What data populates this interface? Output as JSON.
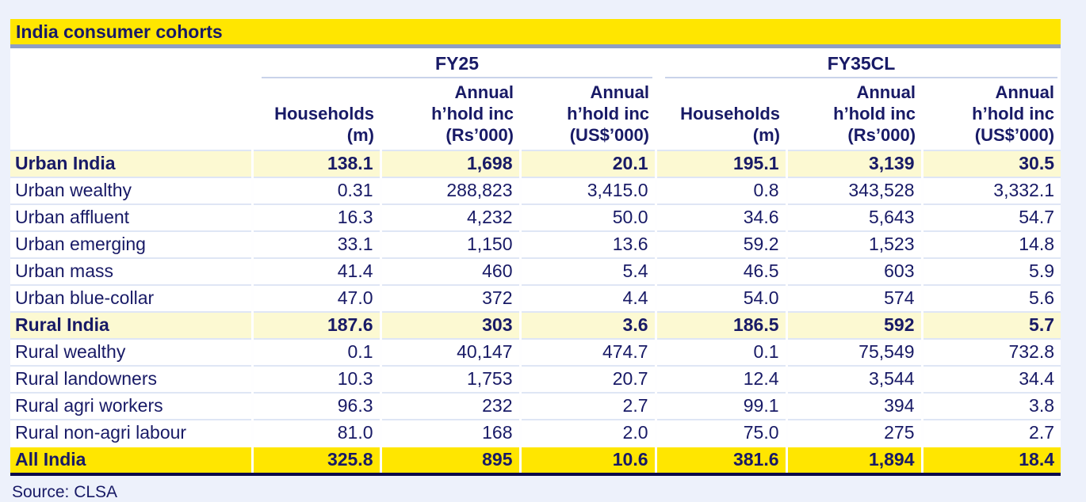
{
  "title": "India consumer cohorts",
  "source_note": "Source: CLSA",
  "table": {
    "group_headers": [
      {
        "label": "FY25"
      },
      {
        "label": "FY35CL"
      }
    ],
    "column_headers": [
      "Households\n(m)",
      "Annual\nh’hold inc\n(Rs’000)",
      "Annual\nh’hold inc\n(US$’000)",
      "Households\n(m)",
      "Annual\nh’hold inc\n(Rs’000)",
      "Annual\nh’hold inc\n(US$’000)"
    ],
    "rows": [
      {
        "label": "Urban India",
        "style": "section",
        "values": [
          "138.1",
          "1,698",
          "20.1",
          "195.1",
          "3,139",
          "30.5"
        ]
      },
      {
        "label": "Urban wealthy",
        "style": "normal",
        "values": [
          "0.31",
          "288,823",
          "3,415.0",
          "0.8",
          "343,528",
          "3,332.1"
        ]
      },
      {
        "label": "Urban affluent",
        "style": "normal",
        "values": [
          "16.3",
          "4,232",
          "50.0",
          "34.6",
          "5,643",
          "54.7"
        ]
      },
      {
        "label": "Urban emerging",
        "style": "normal",
        "values": [
          "33.1",
          "1,150",
          "13.6",
          "59.2",
          "1,523",
          "14.8"
        ]
      },
      {
        "label": "Urban mass",
        "style": "normal",
        "values": [
          "41.4",
          "460",
          "5.4",
          "46.5",
          "603",
          "5.9"
        ]
      },
      {
        "label": "Urban blue-collar",
        "style": "normal",
        "values": [
          "47.0",
          "372",
          "4.4",
          "54.0",
          "574",
          "5.6"
        ]
      },
      {
        "label": "Rural India",
        "style": "section",
        "values": [
          "187.6",
          "303",
          "3.6",
          "186.5",
          "592",
          "5.7"
        ]
      },
      {
        "label": "Rural wealthy",
        "style": "normal",
        "values": [
          "0.1",
          "40,147",
          "474.7",
          "0.1",
          "75,549",
          "732.8"
        ]
      },
      {
        "label": "Rural landowners",
        "style": "normal",
        "values": [
          "10.3",
          "1,753",
          "20.7",
          "12.4",
          "3,544",
          "34.4"
        ]
      },
      {
        "label": "Rural agri workers",
        "style": "normal",
        "values": [
          "96.3",
          "232",
          "2.7",
          "99.1",
          "394",
          "3.8"
        ]
      },
      {
        "label": "Rural non-agri labour",
        "style": "normal",
        "values": [
          "81.0",
          "168",
          "2.0",
          "75.0",
          "275",
          "2.7"
        ]
      },
      {
        "label": "All India",
        "style": "total",
        "values": [
          "325.8",
          "895",
          "10.6",
          "381.6",
          "1,894",
          "18.4"
        ]
      }
    ]
  },
  "colors": {
    "accent_yellow": "#ffe600",
    "section_yellow": "#fcf9d2",
    "navy_text": "#181a66",
    "title_rule_blue_gray": "#8e9ec4",
    "row_separator": "#dfe6f5",
    "bottom_border_navy": "#0b0b4a",
    "page_background": "#edf1fb"
  },
  "chart_data": {
    "type": "table",
    "title": "India consumer cohorts",
    "column_groups": [
      "FY25",
      "FY25",
      "FY25",
      "FY35CL",
      "FY35CL",
      "FY35CL"
    ],
    "columns": [
      "Households (m)",
      "Annual h’hold inc (Rs’000)",
      "Annual h’hold inc (US$’000)",
      "Households (m)",
      "Annual h’hold inc (Rs’000)",
      "Annual h’hold inc (US$’000)"
    ],
    "rows": [
      {
        "cohort": "Urban India",
        "fy25_households_m": 138.1,
        "fy25_inc_rs000": 1698,
        "fy25_inc_usd000": 20.1,
        "fy35cl_households_m": 195.1,
        "fy35cl_inc_rs000": 3139,
        "fy35cl_inc_usd000": 30.5
      },
      {
        "cohort": "Urban wealthy",
        "fy25_households_m": 0.31,
        "fy25_inc_rs000": 288823,
        "fy25_inc_usd000": 3415.0,
        "fy35cl_households_m": 0.8,
        "fy35cl_inc_rs000": 343528,
        "fy35cl_inc_usd000": 3332.1
      },
      {
        "cohort": "Urban affluent",
        "fy25_households_m": 16.3,
        "fy25_inc_rs000": 4232,
        "fy25_inc_usd000": 50.0,
        "fy35cl_households_m": 34.6,
        "fy35cl_inc_rs000": 5643,
        "fy35cl_inc_usd000": 54.7
      },
      {
        "cohort": "Urban emerging",
        "fy25_households_m": 33.1,
        "fy25_inc_rs000": 1150,
        "fy25_inc_usd000": 13.6,
        "fy35cl_households_m": 59.2,
        "fy35cl_inc_rs000": 1523,
        "fy35cl_inc_usd000": 14.8
      },
      {
        "cohort": "Urban mass",
        "fy25_households_m": 41.4,
        "fy25_inc_rs000": 460,
        "fy25_inc_usd000": 5.4,
        "fy35cl_households_m": 46.5,
        "fy35cl_inc_rs000": 603,
        "fy35cl_inc_usd000": 5.9
      },
      {
        "cohort": "Urban blue-collar",
        "fy25_households_m": 47.0,
        "fy25_inc_rs000": 372,
        "fy25_inc_usd000": 4.4,
        "fy35cl_households_m": 54.0,
        "fy35cl_inc_rs000": 574,
        "fy35cl_inc_usd000": 5.6
      },
      {
        "cohort": "Rural India",
        "fy25_households_m": 187.6,
        "fy25_inc_rs000": 303,
        "fy25_inc_usd000": 3.6,
        "fy35cl_households_m": 186.5,
        "fy35cl_inc_rs000": 592,
        "fy35cl_inc_usd000": 5.7
      },
      {
        "cohort": "Rural wealthy",
        "fy25_households_m": 0.1,
        "fy25_inc_rs000": 40147,
        "fy25_inc_usd000": 474.7,
        "fy35cl_households_m": 0.1,
        "fy35cl_inc_rs000": 75549,
        "fy35cl_inc_usd000": 732.8
      },
      {
        "cohort": "Rural landowners",
        "fy25_households_m": 10.3,
        "fy25_inc_rs000": 1753,
        "fy25_inc_usd000": 20.7,
        "fy35cl_households_m": 12.4,
        "fy35cl_inc_rs000": 3544,
        "fy35cl_inc_usd000": 34.4
      },
      {
        "cohort": "Rural agri workers",
        "fy25_households_m": 96.3,
        "fy25_inc_rs000": 232,
        "fy25_inc_usd000": 2.7,
        "fy35cl_households_m": 99.1,
        "fy35cl_inc_rs000": 394,
        "fy35cl_inc_usd000": 3.8
      },
      {
        "cohort": "Rural non-agri labour",
        "fy25_households_m": 81.0,
        "fy25_inc_rs000": 168,
        "fy25_inc_usd000": 2.0,
        "fy35cl_households_m": 75.0,
        "fy35cl_inc_rs000": 275,
        "fy35cl_inc_usd000": 2.7
      },
      {
        "cohort": "All India",
        "fy25_households_m": 325.8,
        "fy25_inc_rs000": 895,
        "fy25_inc_usd000": 10.6,
        "fy35cl_households_m": 381.6,
        "fy35cl_inc_rs000": 1894,
        "fy35cl_inc_usd000": 18.4
      }
    ],
    "source": "CLSA"
  }
}
